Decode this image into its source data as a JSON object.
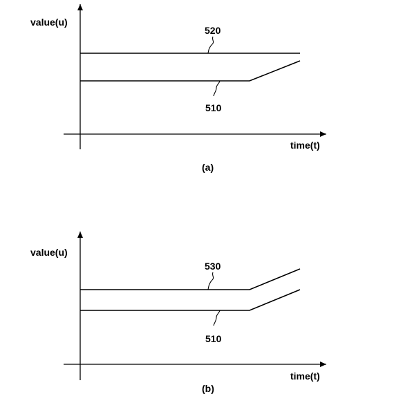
{
  "figure_a": {
    "caption": "(a)",
    "y_axis_label": "value(u)",
    "x_axis_label": "time(t)",
    "curves": [
      {
        "ref": "520",
        "shape": "constant"
      },
      {
        "ref": "510",
        "shape": "constant-then-rising"
      }
    ]
  },
  "figure_b": {
    "caption": "(b)",
    "y_axis_label": "value(u)",
    "x_axis_label": "time(t)",
    "curves": [
      {
        "ref": "530",
        "shape": "constant-then-rising"
      },
      {
        "ref": "510",
        "shape": "constant-then-rising"
      }
    ]
  },
  "colors": {
    "line": "#000000",
    "background": "#ffffff"
  }
}
